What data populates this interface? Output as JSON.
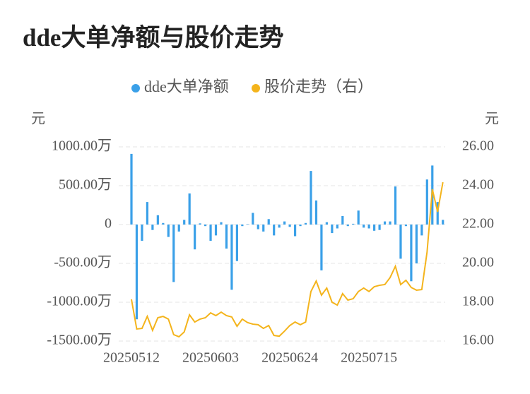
{
  "chart_data": {
    "type": "bar-line",
    "title": "dde大单净额与股价走势",
    "y_label": "元",
    "y2_label": "元",
    "categories": [
      "20250512",
      null,
      null,
      null,
      null,
      null,
      null,
      null,
      null,
      null,
      null,
      null,
      null,
      null,
      null,
      "20250603",
      null,
      null,
      null,
      null,
      null,
      null,
      null,
      null,
      null,
      null,
      null,
      null,
      null,
      null,
      "20250624",
      null,
      null,
      null,
      null,
      null,
      null,
      null,
      null,
      null,
      null,
      null,
      null,
      null,
      null,
      "20250715",
      null,
      null,
      null,
      null,
      null,
      null,
      null,
      null,
      null,
      null,
      null,
      null,
      null,
      null
    ],
    "ylim": [
      -1500,
      1000
    ],
    "yticks": [
      {
        "value": -1500,
        "label": "-1500.00万"
      },
      {
        "value": -1000,
        "label": "-1000.00万"
      },
      {
        "value": -500,
        "label": "-500.00万"
      },
      0,
      {
        "value": 500,
        "label": "500.00万"
      },
      {
        "value": 1000,
        "label": "1000.00万"
      }
    ],
    "y2lim": [
      16,
      26
    ],
    "y2ticks": [
      {
        "value": 16,
        "label": "16.00"
      },
      {
        "value": 18,
        "label": "18.00"
      },
      {
        "value": 20,
        "label": "20.00"
      },
      {
        "value": 22,
        "label": "22.00"
      },
      {
        "value": 24,
        "label": "24.00"
      },
      {
        "value": 26,
        "label": "26.00"
      }
    ],
    "grid": true,
    "series": [
      {
        "name": "dde大单净额",
        "kind": "bar",
        "color": "#3aa0e8",
        "values": [
          910,
          -1220,
          -210,
          290,
          -70,
          120,
          20,
          -160,
          -740,
          -90,
          60,
          400,
          -320,
          15,
          -20,
          -210,
          -140,
          30,
          -310,
          -840,
          -470,
          -20,
          5,
          150,
          -60,
          -90,
          70,
          -140,
          -40,
          40,
          -30,
          -150,
          -20,
          20,
          690,
          310,
          -590,
          30,
          -110,
          -50,
          110,
          -20,
          10,
          180,
          -40,
          -50,
          -80,
          -70,
          40,
          40,
          490,
          -440,
          -20,
          -730,
          -500,
          -140,
          580,
          760,
          290,
          60
        ]
      },
      {
        "name": "股价走势（右）",
        "kind": "line",
        "axis": "y2",
        "color": "#f4b41c",
        "values": [
          18.15,
          16.62,
          16.65,
          17.27,
          16.55,
          17.2,
          17.27,
          17.13,
          16.33,
          16.22,
          16.47,
          17.35,
          16.98,
          17.13,
          17.2,
          17.45,
          17.31,
          17.49,
          17.31,
          17.24,
          16.76,
          17.13,
          16.95,
          16.87,
          16.84,
          16.65,
          16.8,
          16.29,
          16.25,
          16.51,
          16.8,
          16.98,
          16.84,
          16.98,
          18.55,
          19.09,
          18.36,
          18.73,
          18.0,
          17.85,
          18.44,
          18.11,
          18.18,
          18.55,
          18.73,
          18.55,
          18.8,
          18.87,
          18.91,
          19.27,
          19.85,
          18.91,
          19.13,
          18.76,
          18.62,
          18.65,
          20.58,
          23.82,
          22.65,
          24.18
        ]
      }
    ]
  }
}
